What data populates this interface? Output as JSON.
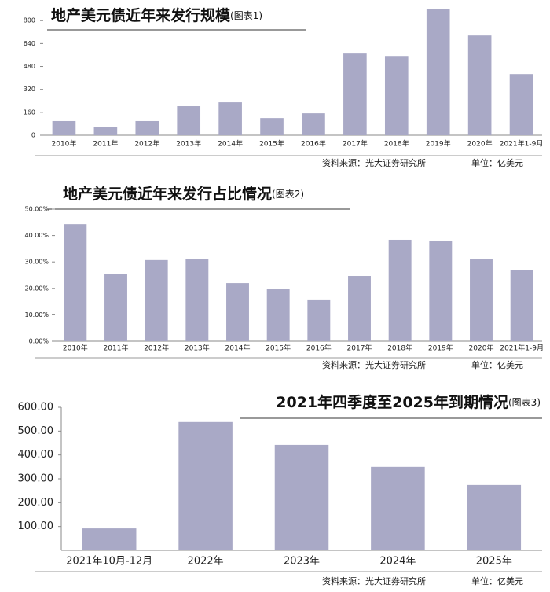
{
  "chart_data": [
    {
      "type": "bar",
      "title": "地产美元债近年来发行规模",
      "subtitle": "(图表1)",
      "categories": [
        "2010年",
        "2011年",
        "2012年",
        "2013年",
        "2014年",
        "2015年",
        "2016年",
        "2017年",
        "2018年",
        "2019年",
        "2020年",
        "2021年1-9月"
      ],
      "values": [
        99,
        55,
        99,
        203,
        230,
        120,
        153,
        570,
        553,
        882,
        696,
        427
      ],
      "color": "#a9a9c6",
      "ylim": [
        0,
        900
      ],
      "yticks": [
        0,
        160,
        320,
        480,
        640,
        800
      ],
      "source": "资料来源：光大证券研究所",
      "unit": "单位：亿美元"
    },
    {
      "type": "bar",
      "title": "地产美元债近年来发行占比情况",
      "subtitle": "(图表2)",
      "categories": [
        "2010年",
        "2011年",
        "2012年",
        "2013年",
        "2014年",
        "2015年",
        "2016年",
        "2017年",
        "2018年",
        "2019年",
        "2020年",
        "2021年1-9月"
      ],
      "values": [
        44.3,
        25.3,
        30.7,
        31.0,
        22.0,
        19.9,
        15.8,
        24.7,
        38.4,
        38.1,
        31.2,
        26.8
      ],
      "color": "#a9a9c6",
      "ylim": [
        0,
        50
      ],
      "yticks": [
        {
          "value": 0,
          "label": "0.00%"
        },
        {
          "value": 10,
          "label": "10.00%"
        },
        {
          "value": 20,
          "label": "20.00%"
        },
        {
          "value": 30,
          "label": "30.00%"
        },
        {
          "value": 40,
          "label": "40.00%"
        },
        {
          "value": 50,
          "label": "50.00%"
        }
      ],
      "source": "资料来源：光大证券研究所",
      "unit": "单位：亿美元"
    },
    {
      "type": "bar",
      "title": "2021年四季度至2025年到期情况",
      "subtitle": "(图表3)",
      "categories": [
        "2021年10月-12月",
        "2022年",
        "2023年",
        "2024年",
        "2025年"
      ],
      "values": [
        92,
        538,
        442,
        350,
        274
      ],
      "color": "#a9a9c6",
      "ylim": [
        0,
        600
      ],
      "yticks": [
        {
          "value": 100,
          "label": "100.00"
        },
        {
          "value": 200,
          "label": "200.00"
        },
        {
          "value": 300,
          "label": "300.00"
        },
        {
          "value": 400,
          "label": "400.00"
        },
        {
          "value": 500,
          "label": "500.00"
        },
        {
          "value": 600,
          "label": "600.00"
        }
      ],
      "source": "资料来源：光大证券研究所",
      "unit": "单位：亿美元"
    }
  ]
}
